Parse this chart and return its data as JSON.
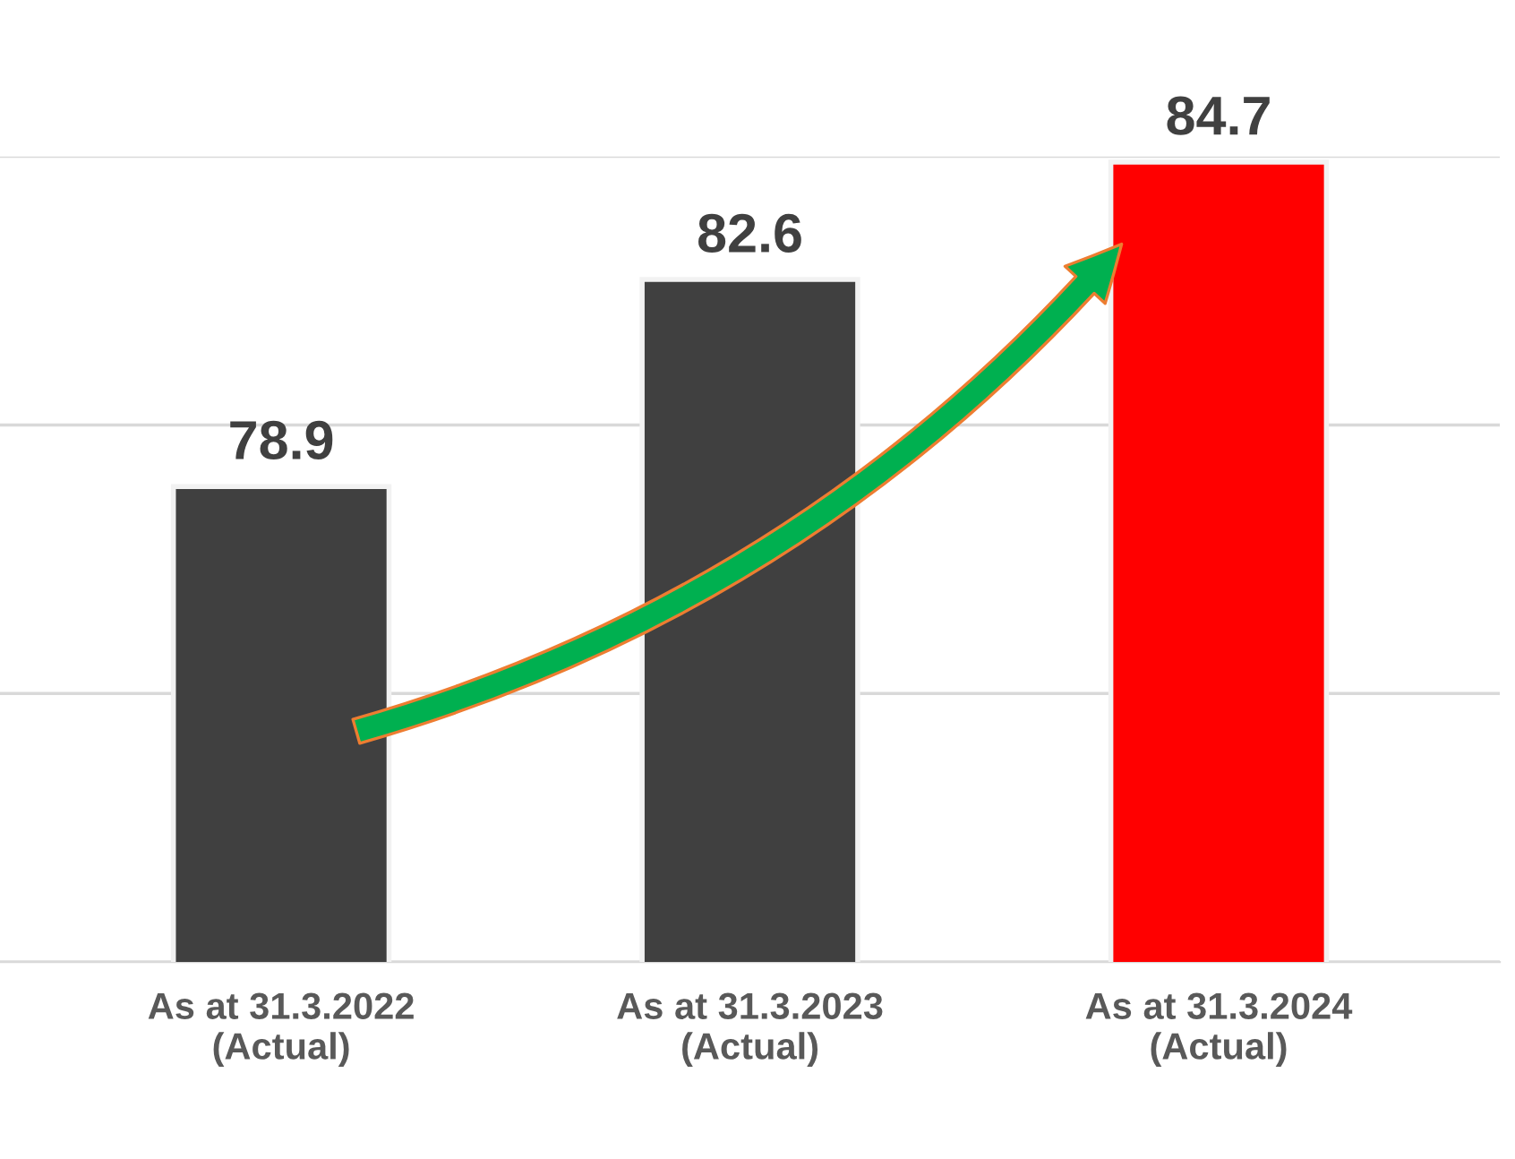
{
  "chart_data": {
    "type": "bar",
    "categories": [
      "As at 31.3.2022\n(Actual)",
      "As at 31.3.2023\n(Actual)",
      "As at 31.3.2024\n(Actual)"
    ],
    "values": [
      78.9,
      82.6,
      84.7
    ],
    "colors": [
      "#404040",
      "#404040",
      "#ff0000"
    ],
    "ylim": [
      70.4,
      84.8
    ],
    "yticks": [
      {
        "value": 70.4,
        "label": null
      },
      {
        "value": 75.2,
        "label": null
      },
      {
        "value": 80.0,
        "label": null
      },
      {
        "value": 84.8,
        "label": null
      }
    ],
    "tick_labels": "x",
    "grid": "y",
    "data_labels": true
  }
}
